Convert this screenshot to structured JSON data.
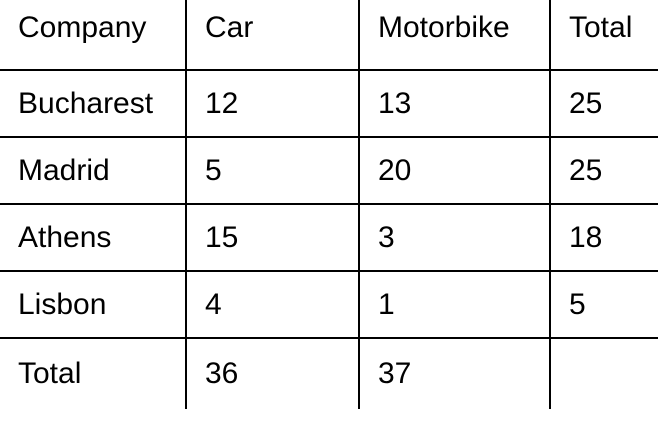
{
  "table": {
    "headers": [
      "Company",
      "Car",
      "Motorbike",
      "Total"
    ],
    "rows": [
      [
        "Bucharest",
        "12",
        "13",
        "25"
      ],
      [
        "Madrid",
        "5",
        "20",
        "25"
      ],
      [
        "Athens",
        "15",
        "3",
        "18"
      ],
      [
        "Lisbon",
        "4",
        "1",
        "5"
      ],
      [
        "Total",
        "36",
        "37",
        ""
      ]
    ]
  }
}
